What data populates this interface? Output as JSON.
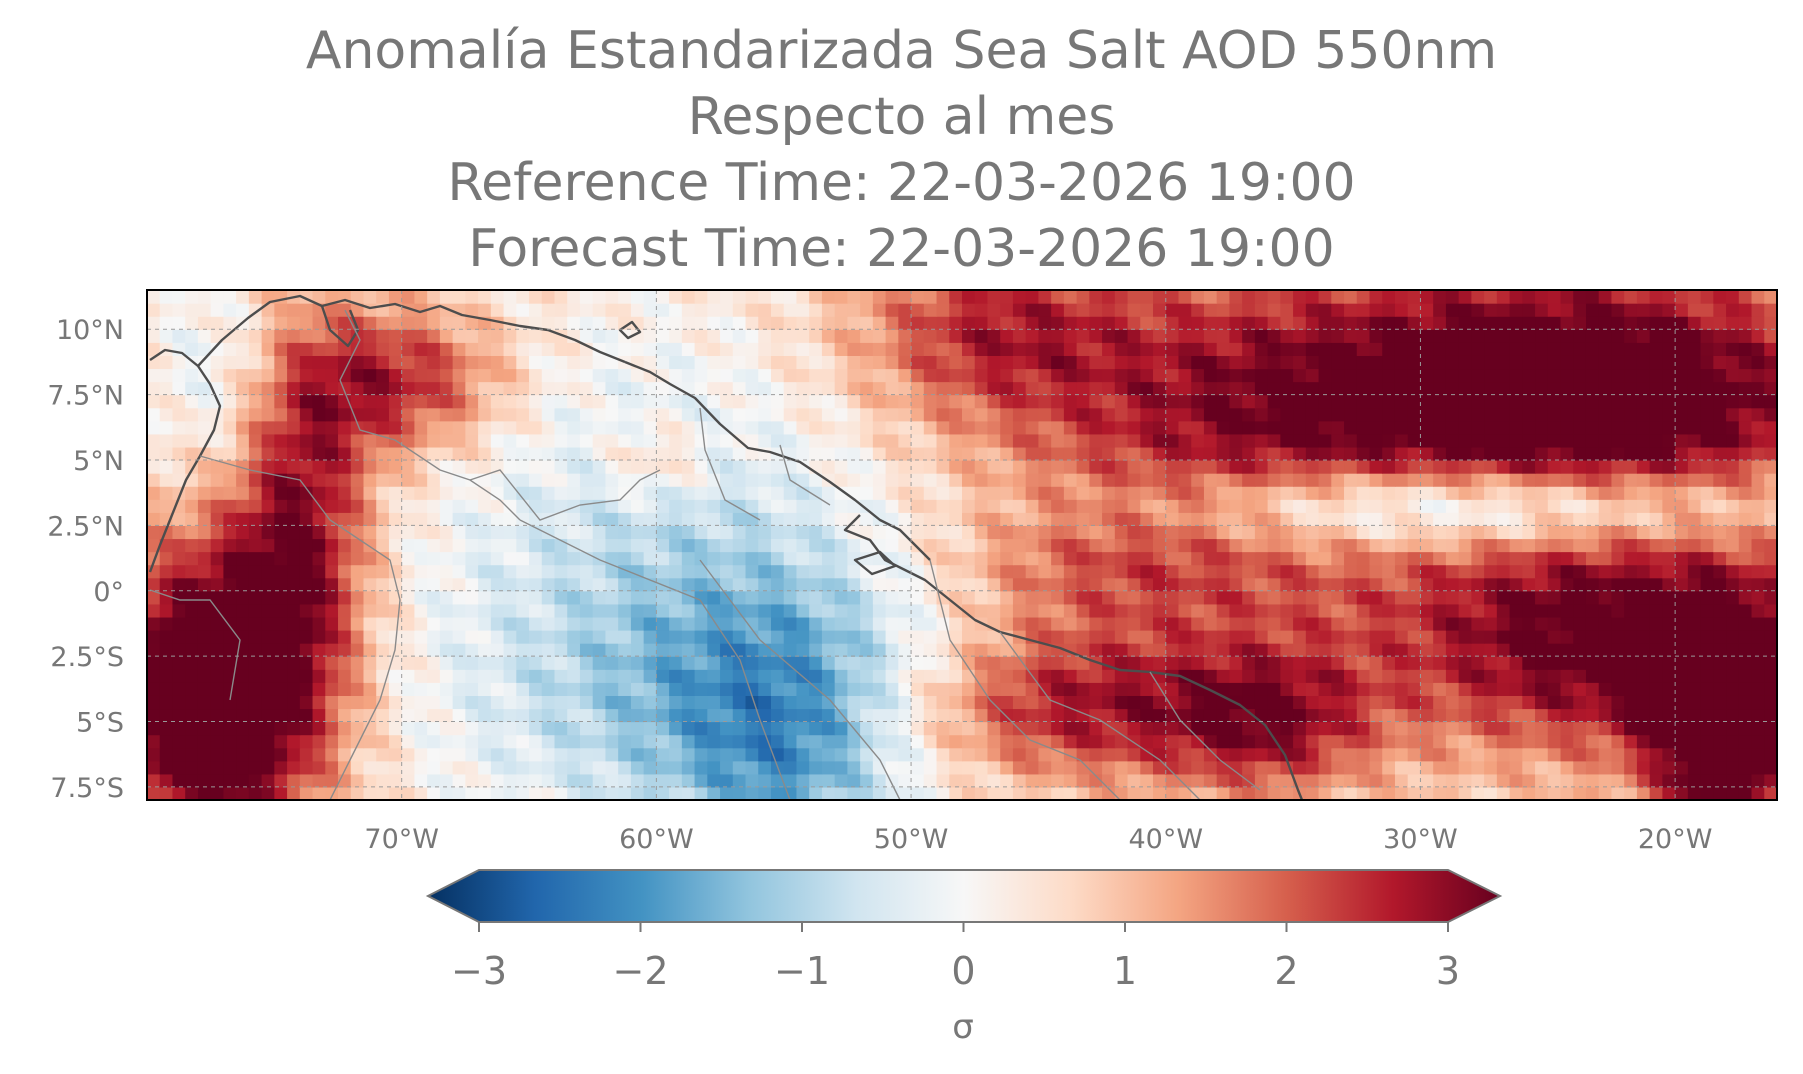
{
  "title": {
    "line1": "Anomalía Estandarizada Sea Salt AOD 550nm",
    "line2": "Respecto al mes",
    "line3": "Reference Time: 22-03-2026 19:00",
    "line4": "Forecast Time: 22-03-2026 19:00"
  },
  "chart_data": {
    "type": "heatmap",
    "map_extent": {
      "lon": [
        -80,
        -16
      ],
      "lat": [
        -8,
        11.5
      ]
    },
    "lat_ticks": [
      {
        "value": 10,
        "label": "10°N"
      },
      {
        "value": 7.5,
        "label": "7.5°N"
      },
      {
        "value": 5,
        "label": "5°N"
      },
      {
        "value": 2.5,
        "label": "2.5°N"
      },
      {
        "value": 0,
        "label": "0°"
      },
      {
        "value": -2.5,
        "label": "2.5°S"
      },
      {
        "value": -5,
        "label": "5°S"
      },
      {
        "value": -7.5,
        "label": "7.5°S"
      }
    ],
    "lon_ticks": [
      {
        "value": -70,
        "label": "70°W"
      },
      {
        "value": -60,
        "label": "60°W"
      },
      {
        "value": -50,
        "label": "50°W"
      },
      {
        "value": -40,
        "label": "40°W"
      },
      {
        "value": -30,
        "label": "30°W"
      },
      {
        "value": -20,
        "label": "20°W"
      }
    ],
    "colorbar": {
      "label": "σ",
      "range": [
        -3,
        3
      ],
      "ticks": [
        {
          "value": -3,
          "label": "−3"
        },
        {
          "value": -2,
          "label": "−2"
        },
        {
          "value": -1,
          "label": "−1"
        },
        {
          "value": 0,
          "label": "0"
        },
        {
          "value": 1,
          "label": "1"
        },
        {
          "value": 2,
          "label": "2"
        },
        {
          "value": 3,
          "label": "3"
        }
      ],
      "colors": [
        "#053061",
        "#2166ac",
        "#4393c3",
        "#92c5de",
        "#d1e5f0",
        "#f7f7f7",
        "#fddbc7",
        "#f4a582",
        "#d6604d",
        "#b2182b",
        "#67001f"
      ],
      "extend": "both"
    },
    "anomaly_features": [
      {
        "lon": -77.5,
        "lat": -4,
        "sx": 3,
        "sy": 4,
        "value": 3.8
      },
      {
        "lon": -74,
        "lat": 3,
        "sx": 2,
        "sy": 5,
        "value": 2.2
      },
      {
        "lon": -70,
        "lat": 8,
        "sx": 3,
        "sy": 2,
        "value": 2.0
      },
      {
        "lon": -68,
        "lat": 1,
        "sx": 5,
        "sy": 7,
        "value": -0.2
      },
      {
        "lon": -77,
        "lat": 8,
        "sx": 2,
        "sy": 3,
        "value": -0.9
      },
      {
        "lon": -60,
        "lat": 4,
        "sx": 6,
        "sy": 5,
        "value": -0.8
      },
      {
        "lon": -54,
        "lat": -3,
        "sx": 5,
        "sy": 4,
        "value": -1.5
      },
      {
        "lon": -61,
        "lat": -4.5,
        "sx": 6,
        "sy": 4,
        "value": -0.9
      },
      {
        "lon": -55,
        "lat": -7,
        "sx": 3,
        "sy": 3,
        "value": -1.0
      },
      {
        "lon": -60,
        "lat": 5,
        "sx": 1.5,
        "sy": 1,
        "value": 0.9
      },
      {
        "lon": -47,
        "lat": 10,
        "sx": 4,
        "sy": 2.5,
        "value": 1.6
      },
      {
        "lon": -38,
        "lat": 7,
        "sx": 6,
        "sy": 4,
        "value": 1.5
      },
      {
        "lon": -24,
        "lat": 7.5,
        "sx": 8,
        "sy": 3.5,
        "value": 3.5
      },
      {
        "lon": -28,
        "lat": 3.2,
        "sx": 9,
        "sy": 1.2,
        "value": -2.4
      },
      {
        "lon": -22,
        "lat": -2,
        "sx": 7,
        "sy": 3,
        "value": 2.8
      },
      {
        "lon": -18,
        "lat": -6,
        "sx": 2,
        "sy": 3,
        "value": 3.0
      },
      {
        "lon": -44,
        "lat": -4.5,
        "sx": 5,
        "sy": 2,
        "value": 2.0
      },
      {
        "lon": -36,
        "lat": -5,
        "sx": 3,
        "sy": 2,
        "value": 1.8
      },
      {
        "lon": -42,
        "lat": 1,
        "sx": 6,
        "sy": 2.5,
        "value": 1.2
      }
    ],
    "grid": true
  }
}
